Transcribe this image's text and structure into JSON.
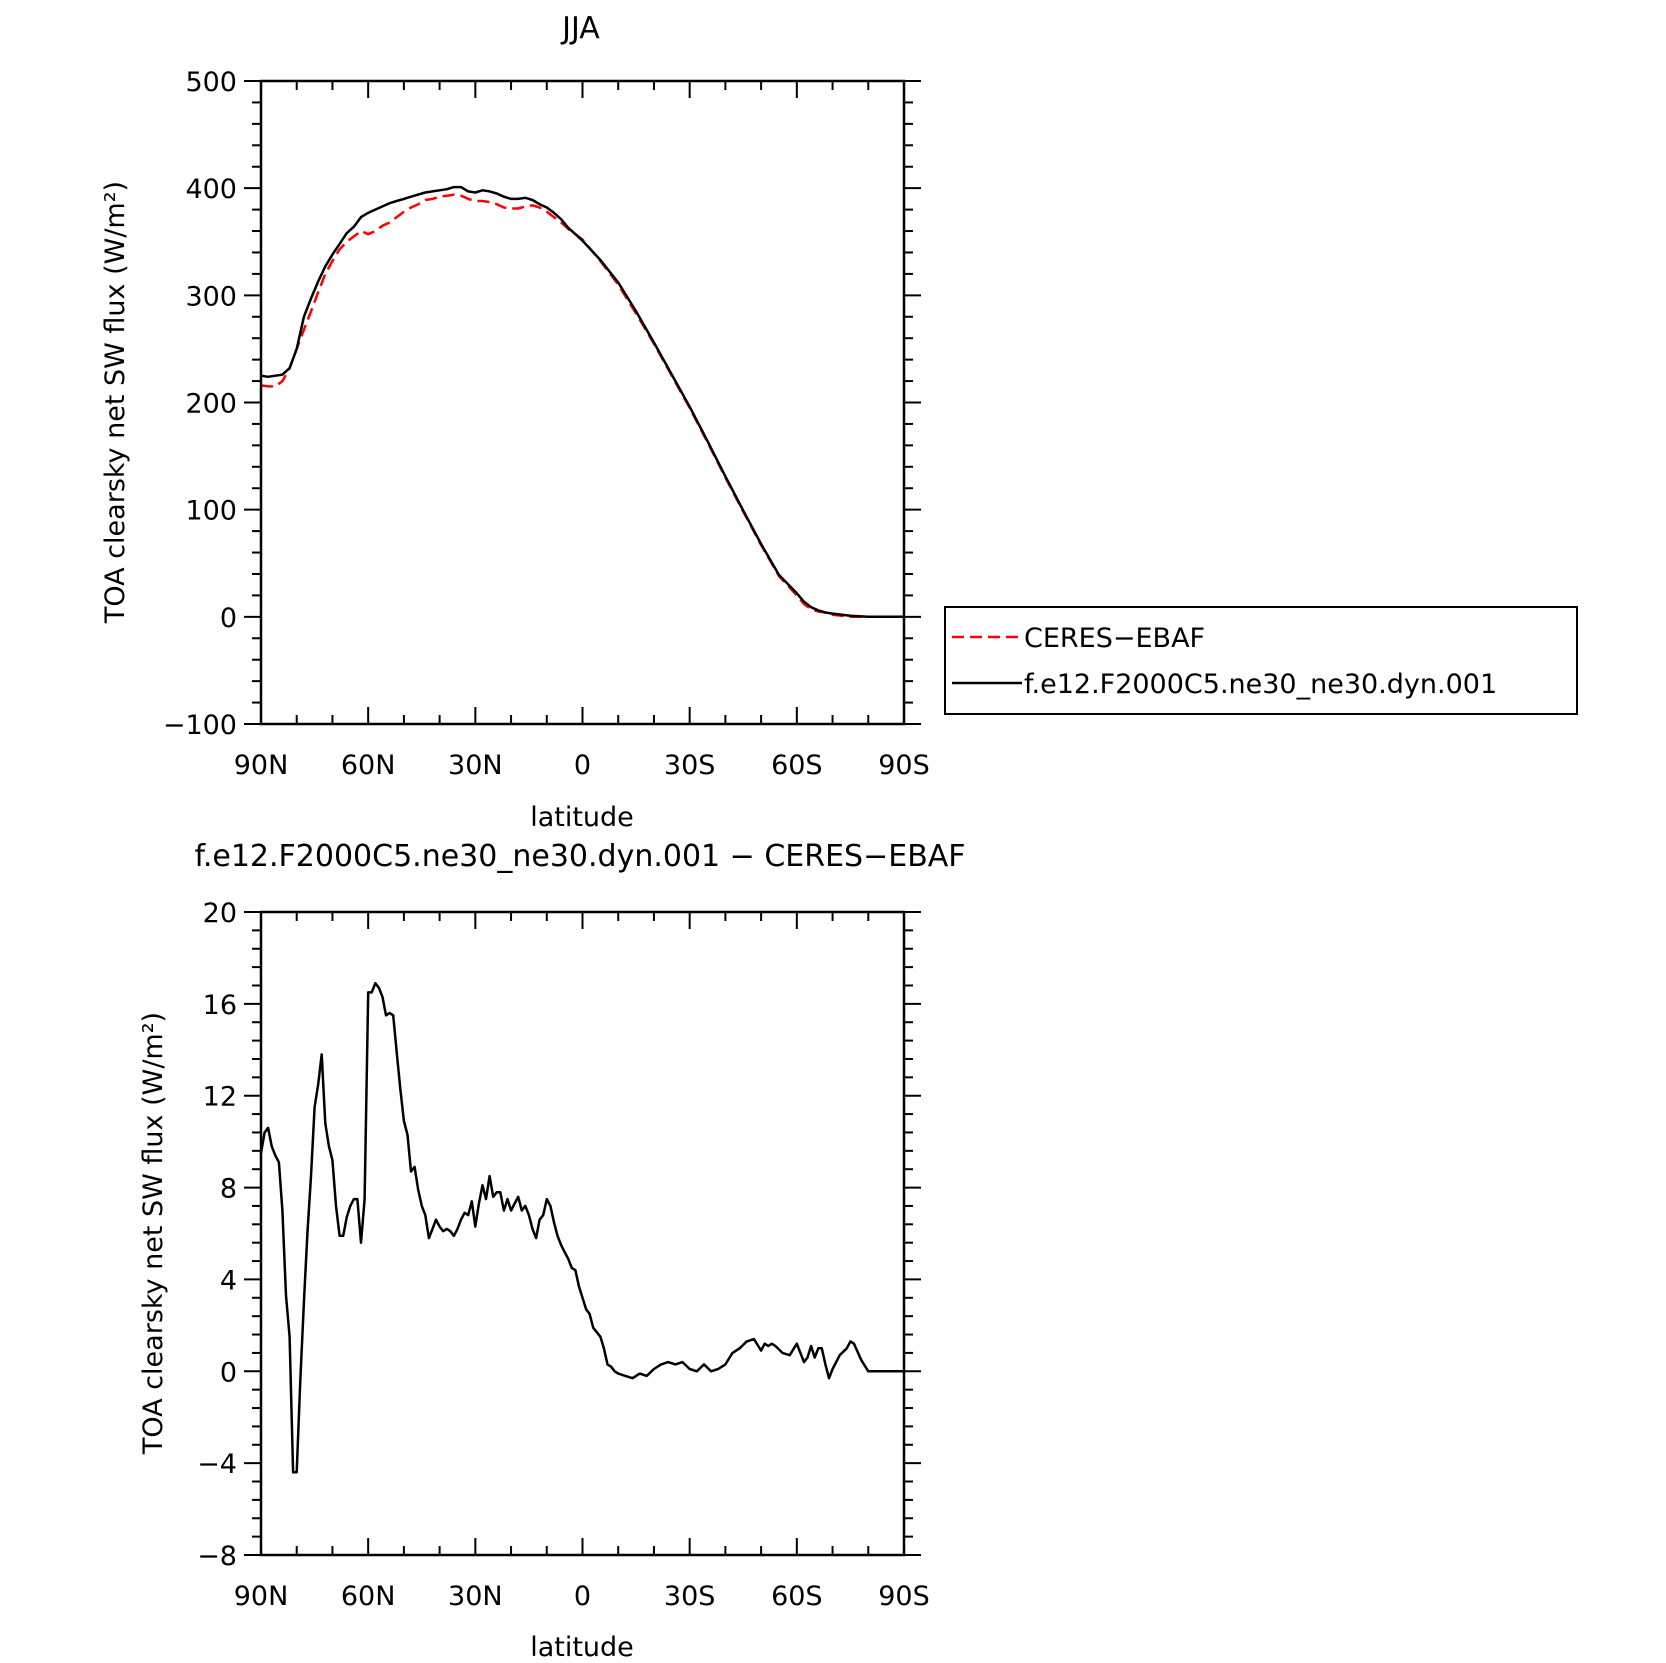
{
  "chart_data": [
    {
      "type": "line",
      "title": "JJA",
      "xlabel": "latitude",
      "ylabel": "TOA clearsky net SW flux (W/m²)",
      "xlim": [
        90,
        -90
      ],
      "ylim": [
        -100,
        500
      ],
      "yticks": [
        -100,
        0,
        100,
        200,
        300,
        400,
        500
      ],
      "ytick_labels": [
        "−100",
        "0",
        "100",
        "200",
        "300",
        "400",
        "500"
      ],
      "xticks": [
        90,
        60,
        30,
        0,
        -30,
        -60,
        -90
      ],
      "xtick_labels": [
        "90N",
        "60N",
        "30N",
        "0",
        "30S",
        "60S",
        "90S"
      ],
      "legend_position": "right",
      "series": [
        {
          "name": "CERES−EBAF",
          "color": "#ff0000",
          "dash": "dashed",
          "x": [
            90,
            88,
            86,
            84,
            82,
            80,
            78,
            76,
            74,
            72,
            70,
            68,
            66,
            64,
            62,
            60,
            58,
            56,
            54,
            52,
            50,
            48,
            46,
            44,
            42,
            40,
            38,
            36,
            34,
            32,
            30,
            28,
            26,
            24,
            22,
            20,
            18,
            16,
            14,
            12,
            10,
            8,
            6,
            4,
            2,
            0,
            -5,
            -10,
            -15,
            -20,
            -25,
            -30,
            -35,
            -40,
            -45,
            -50,
            -55,
            -60,
            -62,
            -64,
            -66,
            -68,
            -70,
            -75,
            -80,
            -85,
            -90
          ],
          "y": [
            216,
            215,
            215,
            220,
            232,
            250,
            268,
            285,
            303,
            320,
            332,
            343,
            350,
            355,
            360,
            357,
            360,
            365,
            368,
            373,
            378,
            382,
            385,
            389,
            390,
            392,
            393,
            394,
            393,
            390,
            388,
            388,
            387,
            385,
            382,
            381,
            381,
            383,
            384,
            382,
            378,
            373,
            368,
            362,
            357,
            352,
            332,
            310,
            283,
            255,
            225,
            195,
            163,
            130,
            98,
            67,
            38,
            20,
            12,
            7,
            5,
            4,
            2,
            0,
            0,
            0,
            0
          ]
        },
        {
          "name": "f.e12.F2000C5.ne30_ne30.dyn.001",
          "color": "#000000",
          "dash": "solid",
          "x": [
            90,
            88,
            86,
            84,
            82,
            80,
            78,
            76,
            74,
            72,
            70,
            68,
            66,
            64,
            62,
            60,
            58,
            56,
            54,
            52,
            50,
            48,
            46,
            44,
            42,
            40,
            38,
            36,
            34,
            32,
            30,
            28,
            26,
            24,
            22,
            20,
            18,
            16,
            14,
            12,
            10,
            8,
            6,
            4,
            2,
            0,
            -5,
            -10,
            -15,
            -20,
            -25,
            -30,
            -35,
            -40,
            -45,
            -50,
            -55,
            -60,
            -62,
            -64,
            -66,
            -68,
            -70,
            -75,
            -80,
            -85,
            -90
          ],
          "y": [
            225,
            224,
            225,
            226,
            232,
            250,
            280,
            297,
            313,
            327,
            338,
            348,
            358,
            364,
            373,
            377,
            380,
            383,
            386,
            388,
            390,
            392,
            394,
            396,
            397,
            398,
            399,
            401,
            401,
            397,
            396,
            398,
            397,
            395,
            392,
            390,
            390,
            391,
            389,
            385,
            382,
            377,
            371,
            363,
            357,
            351,
            333,
            312,
            285,
            256,
            226,
            196,
            164,
            131,
            99,
            68,
            39,
            22,
            14,
            9,
            6,
            4,
            3,
            1,
            0,
            0,
            0
          ]
        }
      ]
    },
    {
      "type": "line",
      "title": "f.e12.F2000C5.ne30_ne30.dyn.001 − CERES−EBAF",
      "xlabel": "latitude",
      "ylabel": "TOA clearsky net SW flux (W/m²)",
      "xlim": [
        90,
        -90
      ],
      "ylim": [
        -8,
        20
      ],
      "yticks": [
        -8,
        -4,
        0,
        4,
        8,
        12,
        16,
        20
      ],
      "ytick_labels": [
        "−8",
        "−4",
        "0",
        "4",
        "8",
        "12",
        "16",
        "20"
      ],
      "xticks": [
        90,
        60,
        30,
        0,
        -30,
        -60,
        -90
      ],
      "xtick_labels": [
        "90N",
        "60N",
        "30N",
        "0",
        "30S",
        "60S",
        "90S"
      ],
      "series": [
        {
          "color": "#000000",
          "dash": "solid",
          "x": [
            90,
            89,
            88,
            87,
            86,
            85,
            84,
            83,
            82,
            81,
            80,
            79,
            78,
            77,
            76,
            75,
            74,
            73,
            72,
            71,
            70,
            69,
            68,
            67,
            66,
            65,
            64,
            63,
            62,
            61,
            60,
            59,
            58,
            57,
            56,
            55,
            54,
            53,
            52,
            51,
            50,
            49,
            48,
            47,
            46,
            45,
            44,
            43,
            42,
            41,
            40,
            39,
            38,
            37,
            36,
            35,
            34,
            33,
            32,
            31,
            30,
            29,
            28,
            27,
            26,
            25,
            24,
            23,
            22,
            21,
            20,
            19,
            18,
            17,
            16,
            15,
            14,
            13,
            12,
            11,
            10,
            9,
            8,
            7,
            6,
            5,
            4,
            3,
            2,
            1,
            0,
            -1,
            -2,
            -3,
            -4,
            -5,
            -6,
            -7,
            -8,
            -9,
            -10,
            -12,
            -14,
            -16,
            -18,
            -20,
            -22,
            -24,
            -26,
            -28,
            -30,
            -32,
            -34,
            -36,
            -38,
            -40,
            -42,
            -44,
            -46,
            -48,
            -50,
            -51,
            -52,
            -53,
            -54,
            -56,
            -58,
            -60,
            -61,
            -62,
            -63,
            -64,
            -65,
            -66,
            -67,
            -68,
            -69,
            -70,
            -72,
            -74,
            -75,
            -76,
            -78,
            -80,
            -82,
            -84,
            -86,
            -88,
            -90
          ],
          "y": [
            9.5,
            10.4,
            10.6,
            9.8,
            9.4,
            9.1,
            7.0,
            3.3,
            1.5,
            -4.4,
            -4.4,
            -0.4,
            3.0,
            6.0,
            8.5,
            11.5,
            12.5,
            13.8,
            10.8,
            9.8,
            9.2,
            7.2,
            5.9,
            5.9,
            6.7,
            7.2,
            7.5,
            7.5,
            5.6,
            7.5,
            16.5,
            16.5,
            16.9,
            16.7,
            16.3,
            15.5,
            15.6,
            15.5,
            13.9,
            12.3,
            10.9,
            10.3,
            8.7,
            8.9,
            7.9,
            7.2,
            6.8,
            5.8,
            6.2,
            6.6,
            6.3,
            6.1,
            6.2,
            6.1,
            5.9,
            6.2,
            6.6,
            6.9,
            6.8,
            7.4,
            6.3,
            7.3,
            8.1,
            7.5,
            8.5,
            7.6,
            7.8,
            7.8,
            7.0,
            7.5,
            7.0,
            7.3,
            7.6,
            7.0,
            7.2,
            6.8,
            6.2,
            5.8,
            6.6,
            6.8,
            7.5,
            7.2,
            6.5,
            5.9,
            5.5,
            5.2,
            4.9,
            4.5,
            4.4,
            3.7,
            3.2,
            2.7,
            2.5,
            1.9,
            1.7,
            1.5,
            1.0,
            0.3,
            0.2,
            0.0,
            -0.1,
            -0.2,
            -0.3,
            -0.1,
            -0.2,
            0.1,
            0.3,
            0.4,
            0.3,
            0.4,
            0.1,
            0.0,
            0.3,
            0.0,
            0.1,
            0.3,
            0.8,
            1.0,
            1.3,
            1.4,
            0.9,
            1.2,
            1.1,
            1.2,
            1.1,
            0.8,
            0.7,
            1.2,
            0.8,
            0.4,
            0.6,
            1.1,
            0.6,
            1.0,
            1.0,
            0.3,
            -0.3,
            0.1,
            0.7,
            1.0,
            1.3,
            1.2,
            0.5,
            0.0,
            0.0,
            0.0,
            0.0,
            0.0,
            0.0
          ]
        }
      ]
    }
  ]
}
